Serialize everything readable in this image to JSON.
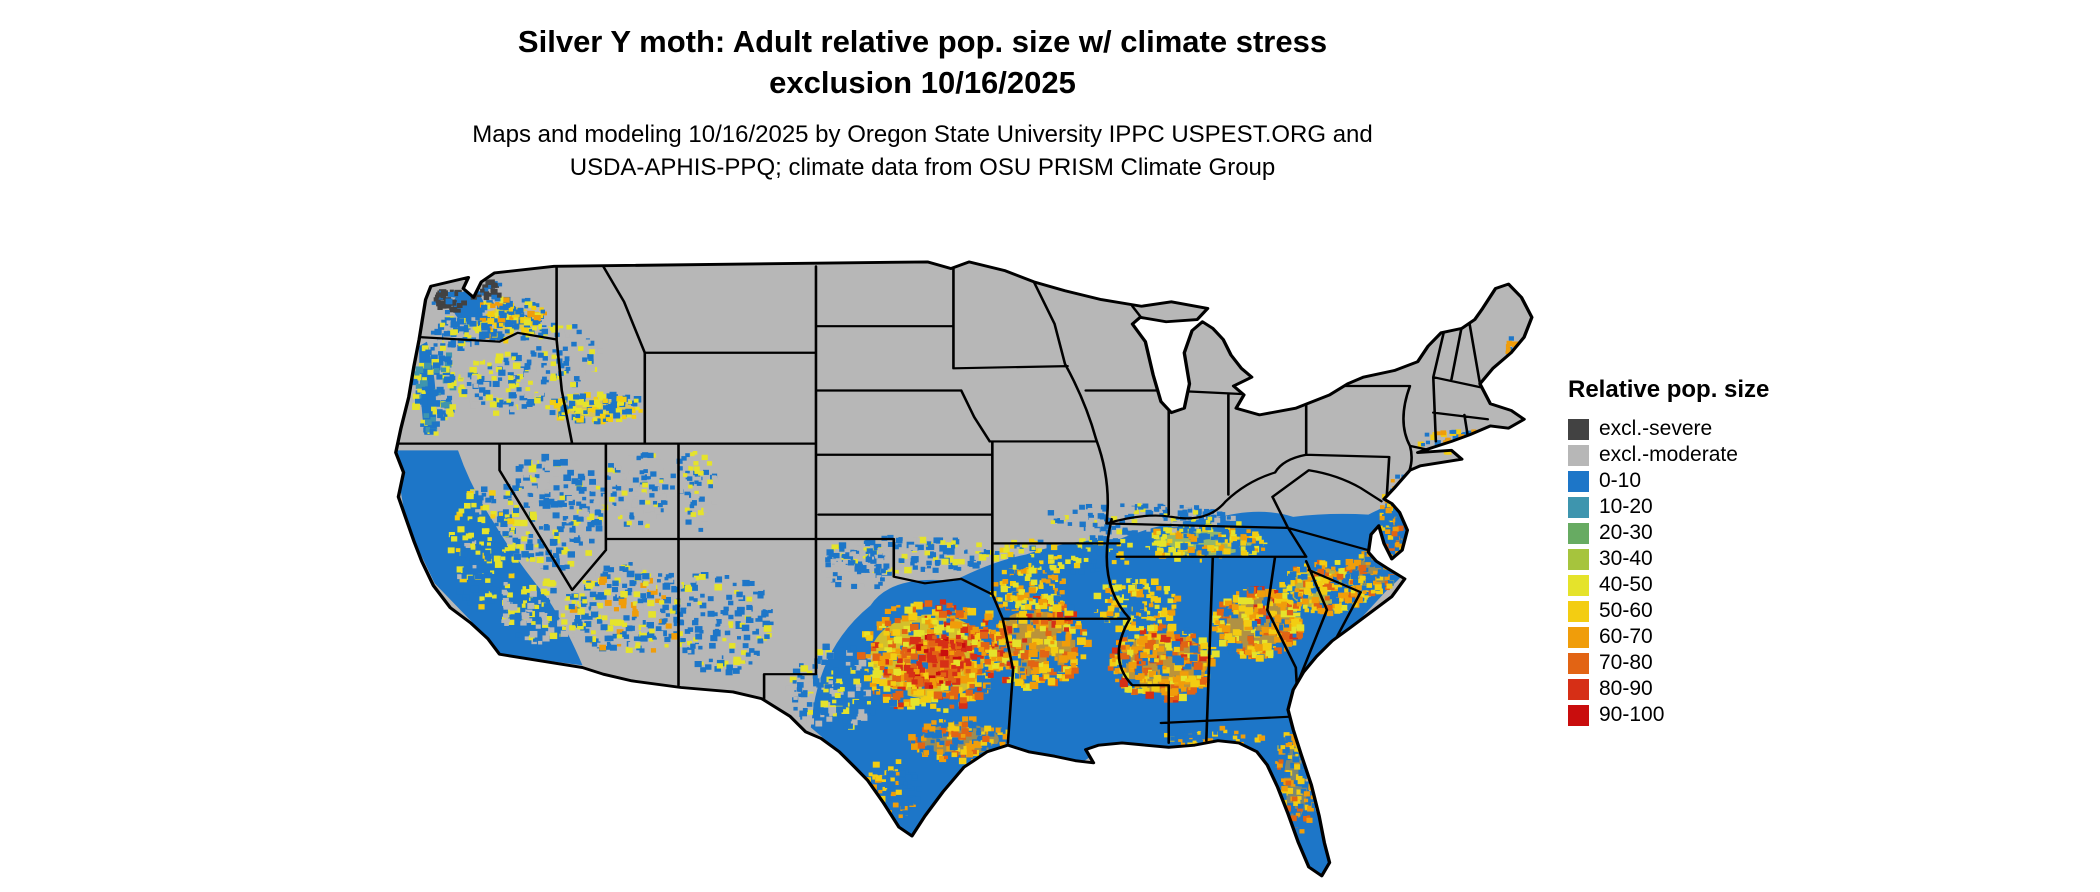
{
  "figure": {
    "title_line1": "Silver Y moth: Adult relative pop. size w/ climate stress",
    "title_line2": "exclusion 10/16/2025",
    "subtitle_line1": "Maps and modeling 10/16/2025 by Oregon State University IPPC USPEST.ORG and",
    "subtitle_line2": "USDA-APHIS-PPQ; climate data from OSU PRISM Climate Group"
  },
  "legend": {
    "title": "Relative pop. size",
    "entries": [
      {
        "label": "excl.-severe",
        "color": "#424242"
      },
      {
        "label": "excl.-moderate",
        "color": "#b7b7b7"
      },
      {
        "label": "0-10",
        "color": "#1d76c8"
      },
      {
        "label": "10-20",
        "color": "#3e95ae"
      },
      {
        "label": "20-30",
        "color": "#67ab62"
      },
      {
        "label": "30-40",
        "color": "#a6c43d"
      },
      {
        "label": "40-50",
        "color": "#e5e32b"
      },
      {
        "label": "50-60",
        "color": "#f3cd12"
      },
      {
        "label": "60-70",
        "color": "#f09d0a"
      },
      {
        "label": "70-80",
        "color": "#e26414"
      },
      {
        "label": "80-90",
        "color": "#d62f16"
      },
      {
        "label": "90-100",
        "color": "#c90d0d"
      }
    ]
  },
  "map": {
    "type": "choropleth-raster",
    "region": "Continental United States with state boundaries",
    "legend_title": "Relative pop. size",
    "pattern_summary": [
      "Northern and interior states (Pacific Northwest interior, Rockies, northern plains, Midwest, Northeast) shown as excluded-moderate (gray)",
      "Small excluded-severe (dark gray) patches in northwest Washington",
      "Relative population 0-10 (blue) background across the southern tier: California, desert Southwest, Texas, Gulf states, Southeast and Atlantic coastal plain",
      "Hotspots of 40-100 (yellow to red) across central and east Texas, Louisiana, Arkansas, Mississippi, Alabama, Georgia, Carolina piedmont, Tennessee valley, Florida, Chesapeake area, Columbia basin and Snake River plain"
    ]
  }
}
